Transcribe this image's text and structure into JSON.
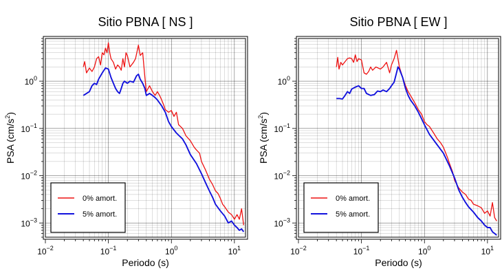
{
  "chart_data": [
    {
      "type": "line",
      "title": "Sitio PBNA [ NS ]",
      "xlabel": "Periodo (s)",
      "ylabel_prefix": "PSA (cm/s",
      "ylabel_sup": "2",
      "ylabel_suffix": ")",
      "x_scale": "log",
      "y_scale": "log",
      "xlim": [
        0.01,
        15
      ],
      "ylim": [
        0.0005,
        8
      ],
      "x_ticks": [
        {
          "value": 0.01,
          "base": "10",
          "exp": "−2"
        },
        {
          "value": 0.1,
          "base": "10",
          "exp": "−1"
        },
        {
          "value": 1,
          "base": "10",
          "exp": "0"
        },
        {
          "value": 10,
          "base": "10",
          "exp": "1"
        }
      ],
      "y_ticks": [
        {
          "value": 0.001,
          "base": "10",
          "exp": "−3"
        },
        {
          "value": 0.01,
          "base": "10",
          "exp": "−2"
        },
        {
          "value": 0.1,
          "base": "10",
          "exp": "−1"
        },
        {
          "value": 1,
          "base": "10",
          "exp": "0"
        }
      ],
      "grid": true,
      "legend_position": "bottom-left",
      "series": [
        {
          "name": "0% amort.",
          "color": "#ee1111",
          "x": [
            0.04,
            0.042,
            0.045,
            0.05,
            0.055,
            0.06,
            0.065,
            0.07,
            0.075,
            0.08,
            0.085,
            0.09,
            0.095,
            0.1,
            0.105,
            0.11,
            0.12,
            0.13,
            0.14,
            0.15,
            0.16,
            0.17,
            0.18,
            0.19,
            0.2,
            0.22,
            0.25,
            0.27,
            0.3,
            0.32,
            0.35,
            0.38,
            0.4,
            0.45,
            0.5,
            0.55,
            0.6,
            0.65,
            0.7,
            0.75,
            0.8,
            0.9,
            1.0,
            1.1,
            1.2,
            1.3,
            1.5,
            1.7,
            2.0,
            2.3,
            2.5,
            2.8,
            3.0,
            3.5,
            4.0,
            4.5,
            5.0,
            5.5,
            6.0,
            6.5,
            7.0,
            8.0,
            9.0,
            10,
            11,
            12,
            13,
            14
          ],
          "y": [
            2.0,
            2.6,
            1.5,
            1.9,
            1.6,
            2.0,
            3.0,
            3.3,
            2.2,
            4.0,
            3.6,
            5.0,
            4.0,
            6.5,
            4.0,
            3.0,
            2.5,
            1.8,
            2.2,
            2.0,
            1.7,
            3.0,
            2.0,
            4.0,
            3.5,
            2.0,
            2.5,
            3.0,
            5.8,
            3.5,
            4.0,
            1.2,
            0.6,
            0.8,
            0.6,
            0.5,
            0.6,
            0.5,
            0.4,
            0.32,
            0.25,
            0.22,
            0.24,
            0.18,
            0.22,
            0.12,
            0.1,
            0.07,
            0.055,
            0.04,
            0.035,
            0.03,
            0.02,
            0.013,
            0.0085,
            0.0065,
            0.0048,
            0.0042,
            0.0033,
            0.0025,
            0.0022,
            0.0017,
            0.0015,
            0.0012,
            0.0015,
            0.0012,
            0.002,
            0.0009
          ]
        },
        {
          "name": "5% amort.",
          "color": "#1111dd",
          "x": [
            0.04,
            0.045,
            0.05,
            0.055,
            0.06,
            0.065,
            0.07,
            0.08,
            0.09,
            0.1,
            0.11,
            0.12,
            0.13,
            0.14,
            0.15,
            0.16,
            0.17,
            0.18,
            0.2,
            0.22,
            0.25,
            0.28,
            0.3,
            0.32,
            0.35,
            0.38,
            0.4,
            0.45,
            0.5,
            0.55,
            0.6,
            0.7,
            0.8,
            0.9,
            1.0,
            1.2,
            1.5,
            1.7,
            2.0,
            2.5,
            3.0,
            3.5,
            4.0,
            4.5,
            5.0,
            6.0,
            7.0,
            8.0,
            9.0,
            10,
            11,
            12,
            13,
            14
          ],
          "y": [
            0.5,
            0.55,
            0.6,
            0.8,
            0.9,
            0.85,
            1.1,
            1.5,
            1.9,
            1.8,
            1.2,
            0.9,
            0.7,
            0.6,
            0.55,
            0.7,
            0.9,
            1.0,
            0.9,
            1.0,
            0.95,
            1.3,
            1.4,
            1.1,
            0.9,
            0.7,
            0.5,
            0.55,
            0.5,
            0.45,
            0.4,
            0.3,
            0.22,
            0.14,
            0.11,
            0.08,
            0.06,
            0.045,
            0.028,
            0.018,
            0.011,
            0.007,
            0.0048,
            0.0035,
            0.0025,
            0.0018,
            0.0014,
            0.001,
            0.0011,
            0.0009,
            0.0008,
            0.0007,
            0.00075,
            0.00065
          ]
        }
      ]
    },
    {
      "type": "line",
      "title": "Sitio PBNA [ EW ]",
      "xlabel": "Periodo (s)",
      "ylabel_prefix": "PSA (cm/s",
      "ylabel_sup": "2",
      "ylabel_suffix": ")",
      "x_scale": "log",
      "y_scale": "log",
      "xlim": [
        0.01,
        15
      ],
      "ylim": [
        0.0005,
        8
      ],
      "x_ticks": [
        {
          "value": 0.01,
          "base": "10",
          "exp": "−2"
        },
        {
          "value": 0.1,
          "base": "10",
          "exp": "−1"
        },
        {
          "value": 1,
          "base": "10",
          "exp": "0"
        },
        {
          "value": 10,
          "base": "10",
          "exp": "1"
        }
      ],
      "y_ticks": [
        {
          "value": 0.001,
          "base": "10",
          "exp": "−3"
        },
        {
          "value": 0.01,
          "base": "10",
          "exp": "−2"
        },
        {
          "value": 0.1,
          "base": "10",
          "exp": "−1"
        },
        {
          "value": 1,
          "base": "10",
          "exp": "0"
        }
      ],
      "grid": true,
      "legend_position": "bottom-left",
      "series": [
        {
          "name": "0% amort.",
          "color": "#ee1111",
          "x": [
            0.04,
            0.042,
            0.044,
            0.047,
            0.05,
            0.055,
            0.06,
            0.065,
            0.07,
            0.075,
            0.08,
            0.085,
            0.09,
            0.1,
            0.11,
            0.12,
            0.13,
            0.14,
            0.15,
            0.17,
            0.2,
            0.22,
            0.25,
            0.28,
            0.3,
            0.33,
            0.36,
            0.38,
            0.4,
            0.45,
            0.5,
            0.55,
            0.6,
            0.7,
            0.8,
            0.9,
            1.0,
            1.1,
            1.2,
            1.4,
            1.6,
            1.8,
            2.0,
            2.3,
            2.5,
            2.8,
            3.0,
            3.5,
            4.0,
            4.5,
            5.0,
            5.5,
            6.0,
            7.0,
            8.0,
            9.0,
            10,
            11,
            12,
            13,
            14
          ],
          "y": [
            2.0,
            3.2,
            1.8,
            2.5,
            2.2,
            2.6,
            3.0,
            3.1,
            3.0,
            2.5,
            3.6,
            2.6,
            3.0,
            2.8,
            1.5,
            1.4,
            1.6,
            2.0,
            1.7,
            2.0,
            1.8,
            2.0,
            2.5,
            1.5,
            2.2,
            3.0,
            4.5,
            3.0,
            2.0,
            1.2,
            0.8,
            0.6,
            0.5,
            0.35,
            0.25,
            0.2,
            0.14,
            0.12,
            0.11,
            0.08,
            0.06,
            0.05,
            0.04,
            0.025,
            0.018,
            0.012,
            0.008,
            0.0055,
            0.0045,
            0.004,
            0.0032,
            0.003,
            0.0025,
            0.0023,
            0.0021,
            0.0016,
            0.0018,
            0.0014,
            0.0027,
            0.0013,
            0.0011
          ]
        },
        {
          "name": "5% amort.",
          "color": "#1111dd",
          "x": [
            0.04,
            0.045,
            0.05,
            0.055,
            0.06,
            0.065,
            0.07,
            0.08,
            0.09,
            0.1,
            0.11,
            0.12,
            0.14,
            0.16,
            0.18,
            0.2,
            0.22,
            0.25,
            0.28,
            0.3,
            0.33,
            0.36,
            0.38,
            0.4,
            0.45,
            0.5,
            0.55,
            0.6,
            0.7,
            0.8,
            0.9,
            1.0,
            1.2,
            1.5,
            1.7,
            2.0,
            2.5,
            3.0,
            3.5,
            4.0,
            4.5,
            5.0,
            6.0,
            7.0,
            8.0,
            9.0,
            10,
            11,
            12,
            13,
            14
          ],
          "y": [
            0.43,
            0.43,
            0.42,
            0.5,
            0.6,
            0.55,
            0.68,
            0.75,
            0.8,
            0.7,
            0.7,
            0.55,
            0.5,
            0.52,
            0.62,
            0.6,
            0.65,
            0.6,
            0.7,
            0.8,
            0.95,
            1.5,
            2.0,
            1.8,
            1.2,
            0.7,
            0.5,
            0.4,
            0.3,
            0.22,
            0.16,
            0.12,
            0.075,
            0.05,
            0.04,
            0.03,
            0.016,
            0.009,
            0.005,
            0.0035,
            0.0027,
            0.0022,
            0.0017,
            0.0013,
            0.0011,
            0.0009,
            0.0008,
            0.0008,
            0.00065,
            0.0006,
            0.00055
          ]
        }
      ]
    }
  ]
}
